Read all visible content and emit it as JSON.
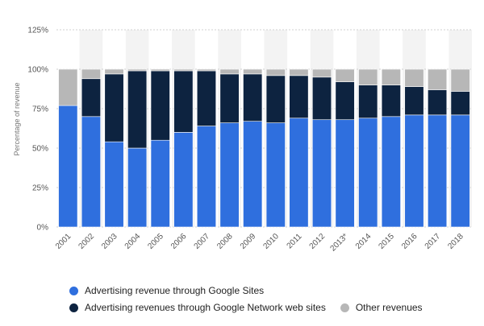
{
  "chart_data": {
    "type": "bar",
    "stacked": true,
    "ylabel": "Percentage of revenue",
    "ylim": [
      0,
      125
    ],
    "yticks": [
      0,
      25,
      50,
      75,
      100,
      125
    ],
    "ytick_labels": [
      "0%",
      "25%",
      "50%",
      "75%",
      "100%",
      "125%"
    ],
    "categories": [
      "2001",
      "2002",
      "2003",
      "2004",
      "2005",
      "2006",
      "2007",
      "2008",
      "2009",
      "2010",
      "2011",
      "2012",
      "2013*",
      "2014",
      "2015",
      "2016",
      "2017",
      "2018"
    ],
    "series": [
      {
        "name": "Advertising revenue through Google Sites",
        "color": "#2f6fde",
        "values": [
          77,
          70,
          54,
          50,
          55,
          60,
          64,
          66,
          67,
          66,
          69,
          68,
          68,
          69,
          70,
          71,
          71,
          71
        ]
      },
      {
        "name": "Advertising revenues through Google Network web sites",
        "color": "#0d2340",
        "values": [
          0,
          24,
          43,
          49,
          44,
          39,
          35,
          31,
          30,
          30,
          27,
          27,
          24,
          21,
          20,
          18,
          16,
          15
        ]
      },
      {
        "name": "Other revenues",
        "color": "#b7b7b7",
        "values": [
          23,
          6,
          3,
          1,
          1,
          1,
          1,
          3,
          3,
          4,
          4,
          5,
          8,
          10,
          10,
          11,
          13,
          14
        ]
      }
    ],
    "legend_position": "bottom-left"
  }
}
